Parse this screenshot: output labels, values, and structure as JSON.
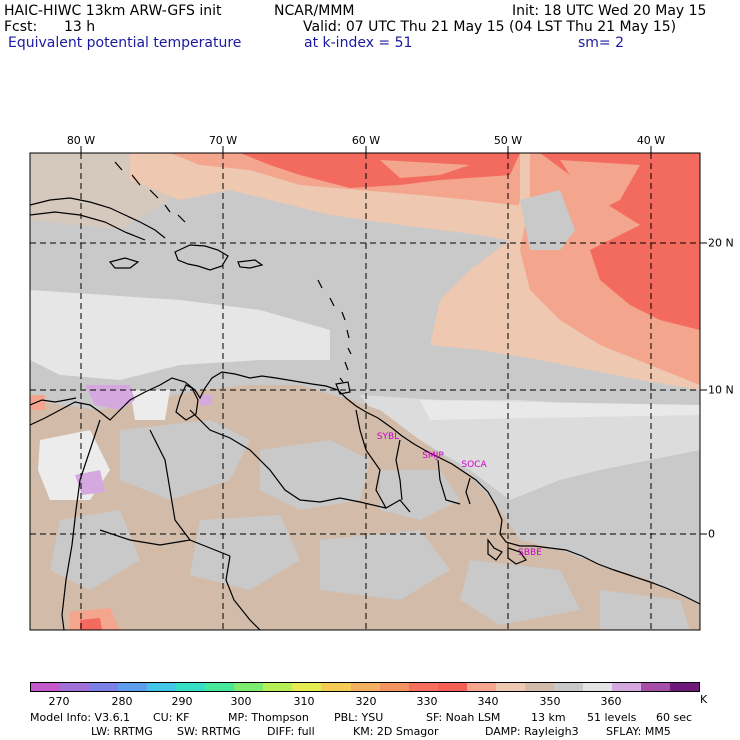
{
  "header": {
    "model_title": "HAIC-HIWC 13km ARW-GFS init",
    "org": "NCAR/MMM",
    "init": "Init: 18 UTC Wed 20 May 15",
    "fcst_label": "Fcst:",
    "fcst_value": "13 h",
    "valid": "Valid: 07 UTC Thu 21 May 15 (04 LST Thu 21 May 15)",
    "field": "Equivalent potential temperature",
    "level": "at k-index =  51",
    "smoothing": "sm= 2"
  },
  "map": {
    "lon_labels": [
      "80 W",
      "70 W",
      "60 W",
      "50 W",
      "40 W"
    ],
    "lat_labels": [
      "20 N",
      "10 N",
      "0"
    ],
    "stations": [
      "SYBL",
      "SMJP",
      "SOCA",
      "SBBE"
    ],
    "colors": {
      "ocean_grey": "#c9c9c9",
      "land_tan": "#d2bba8",
      "salmon": "#f3a58d",
      "red": "#f36a5e",
      "white": "#ececec",
      "lilac": "#d6a8e0",
      "peach": "#eec8b0"
    }
  },
  "colorbar": {
    "colors": [
      "#c45ac9",
      "#a070d8",
      "#7b7fe6",
      "#5f9ded",
      "#43c6e6",
      "#35dfc6",
      "#47e89b",
      "#7ceb70",
      "#b3ef55",
      "#e5ec52",
      "#f4cc55",
      "#f3b060",
      "#f29562",
      "#f56f5d",
      "#f45f55",
      "#f3a58d",
      "#eec8b0",
      "#d2bba8",
      "#c9c9c9",
      "#e3e3e3",
      "#d6a8e0",
      "#a64ea8",
      "#6e1a78"
    ],
    "ticks": [
      "270",
      "280",
      "290",
      "300",
      "310",
      "320",
      "330",
      "340",
      "350",
      "360"
    ],
    "unit": "K"
  },
  "footer": {
    "line1": [
      "Model Info: V3.6.1",
      "CU: KF",
      "MP: Thompson",
      "PBL: YSU",
      "SF: Noah LSM",
      "13 km",
      "51 levels",
      "60 sec"
    ],
    "line2": [
      "LW: RRTMG",
      "SW: RRTMG",
      "DIFF: full",
      "KM: 2D Smagor",
      "DAMP: Rayleigh3",
      "SFLAY: MM5"
    ]
  }
}
